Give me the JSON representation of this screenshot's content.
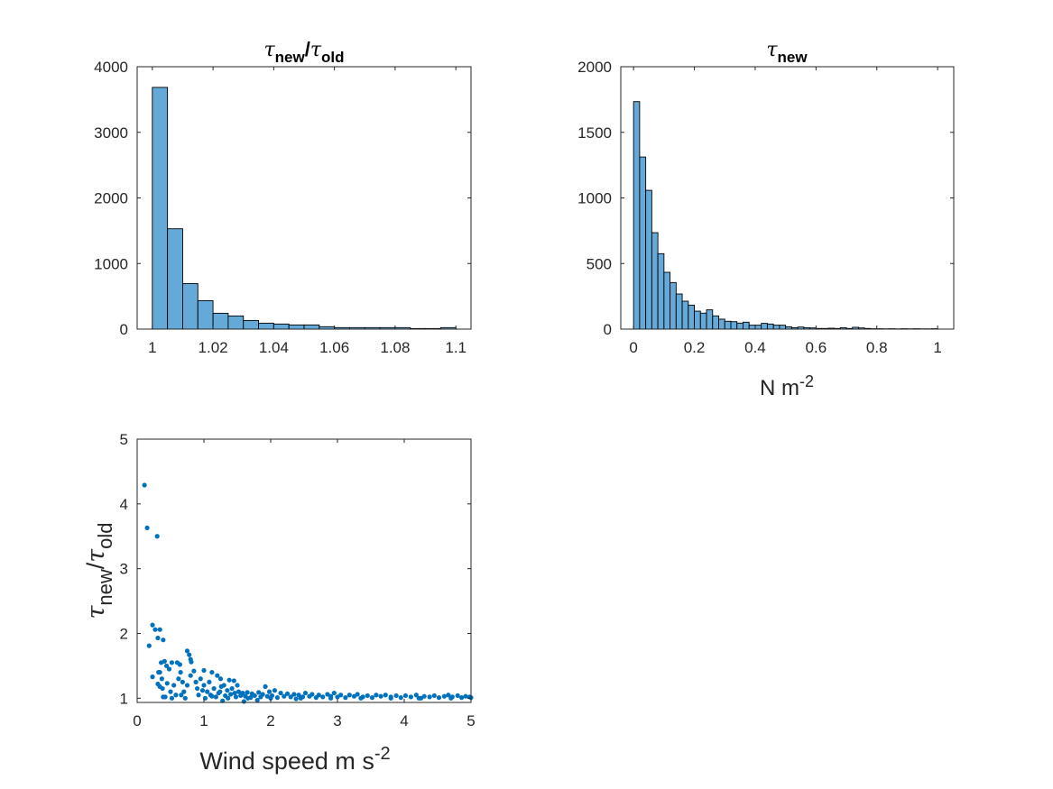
{
  "chart_data": [
    {
      "type": "bar",
      "subtype": "histogram",
      "title": {
        "symbol": "τ",
        "num_sub": "new",
        "slash": "/",
        "den_sub": "old"
      },
      "xlabel": "",
      "ylabel": "",
      "bin_edges_start": 1.0,
      "bin_width": 0.005,
      "values": [
        3685,
        1530,
        694,
        434,
        242,
        201,
        132,
        91,
        78,
        64,
        64,
        37,
        23,
        23,
        23,
        23,
        23,
        9,
        9,
        23
      ],
      "xlim": [
        0.995,
        1.105
      ],
      "ylim": [
        0,
        4000
      ],
      "xticks": [
        1,
        1.02,
        1.04,
        1.06,
        1.08,
        1.1
      ],
      "xtick_labels": [
        "1",
        "1.02",
        "1.04",
        "1.06",
        "1.08",
        "1.1"
      ],
      "yticks": [
        0,
        1000,
        2000,
        3000,
        4000
      ],
      "ytick_labels": [
        "0",
        "1000",
        "2000",
        "3000",
        "4000"
      ],
      "color": "#64A9D8"
    },
    {
      "type": "bar",
      "subtype": "histogram",
      "title": {
        "symbol": "τ",
        "num_sub": "new"
      },
      "xlabel": {
        "text": "N m",
        "sup": "-2"
      },
      "ylabel": "",
      "bin_edges_start": 0.0,
      "bin_width": 0.02,
      "values": [
        1734,
        1312,
        1058,
        735,
        575,
        433,
        355,
        268,
        213,
        183,
        137,
        122,
        147,
        101,
        76,
        60,
        57,
        46,
        53,
        30,
        30,
        44,
        39,
        30,
        30,
        18,
        11,
        16,
        11,
        9,
        5,
        5,
        7,
        5,
        11,
        5,
        14,
        9,
        5,
        3,
        3,
        2,
        3,
        2,
        3,
        2,
        3,
        2,
        2,
        3
      ],
      "xlim": [
        -0.042,
        1.053
      ],
      "ylim": [
        0,
        2000
      ],
      "xticks": [
        0,
        0.2,
        0.4,
        0.6,
        0.8,
        1
      ],
      "xtick_labels": [
        "0",
        "0.2",
        "0.4",
        "0.6",
        "0.8",
        "1"
      ],
      "yticks": [
        0,
        500,
        1000,
        1500,
        2000
      ],
      "ytick_labels": [
        "0",
        "500",
        "1000",
        "1500",
        "2000"
      ],
      "color": "#64A9D8"
    },
    {
      "type": "scatter",
      "title": "",
      "xlabel": {
        "text": "Wind speed m s",
        "sup": "-2"
      },
      "ylabel": {
        "symbol": "τ",
        "num_sub": "new",
        "slash": "/",
        "den_sub": "old"
      },
      "xlim": [
        0,
        5
      ],
      "ylim": [
        0.935,
        5
      ],
      "xticks": [
        0,
        1,
        2,
        3,
        4,
        5
      ],
      "xtick_labels": [
        "0",
        "1",
        "2",
        "3",
        "4",
        "5"
      ],
      "yticks": [
        1,
        2,
        3,
        4,
        5
      ],
      "ytick_labels": [
        "1",
        "2",
        "3",
        "4",
        "5"
      ],
      "color": "#0072BD",
      "points": [
        [
          0.11,
          4.29
        ],
        [
          0.15,
          3.63
        ],
        [
          0.3,
          3.5
        ],
        [
          0.23,
          2.13
        ],
        [
          0.27,
          2.06
        ],
        [
          0.34,
          2.06
        ],
        [
          0.31,
          1.93
        ],
        [
          0.39,
          1.9
        ],
        [
          0.18,
          1.81
        ],
        [
          0.23,
          1.33
        ],
        [
          0.75,
          1.73
        ],
        [
          0.78,
          1.67
        ],
        [
          0.8,
          1.6
        ],
        [
          0.81,
          1.56
        ],
        [
          0.36,
          1.55
        ],
        [
          0.41,
          1.57
        ],
        [
          0.44,
          1.5
        ],
        [
          0.52,
          1.55
        ],
        [
          0.6,
          1.55
        ],
        [
          0.64,
          1.52
        ],
        [
          0.48,
          1.45
        ],
        [
          0.34,
          1.4
        ],
        [
          0.32,
          1.4
        ],
        [
          0.37,
          1.3
        ],
        [
          0.31,
          1.22
        ],
        [
          0.34,
          1.18
        ],
        [
          0.38,
          1.15
        ],
        [
          0.45,
          1.23
        ],
        [
          0.39,
          1.02
        ],
        [
          0.42,
          1.02
        ],
        [
          0.52,
          1.0
        ],
        [
          0.5,
          1.1
        ],
        [
          0.55,
          1.2
        ],
        [
          0.58,
          1.05
        ],
        [
          0.62,
          1.3
        ],
        [
          0.65,
          1.4
        ],
        [
          0.68,
          1.25
        ],
        [
          0.7,
          1.1
        ],
        [
          0.72,
          1.0
        ],
        [
          0.75,
          1.2
        ],
        [
          0.8,
          1.35
        ],
        [
          0.85,
          1.42
        ],
        [
          0.9,
          1.15
        ],
        [
          0.95,
          1.3
        ],
        [
          1.0,
          1.43
        ],
        [
          1.0,
          1.2
        ],
        [
          1.05,
          1.1
        ],
        [
          1.12,
          1.4
        ],
        [
          1.2,
          1.35
        ],
        [
          1.25,
          1.3
        ],
        [
          1.3,
          1.2
        ],
        [
          1.38,
          1.28
        ],
        [
          1.45,
          1.27
        ],
        [
          1.5,
          1.2
        ],
        [
          1.28,
          0.96
        ],
        [
          1.6,
          0.95
        ],
        [
          1.8,
          0.97
        ],
        [
          1.92,
          1.18
        ],
        [
          0.66,
          1.05
        ],
        [
          0.88,
          1.25
        ],
        [
          0.92,
          1.05
        ],
        [
          0.98,
          1.12
        ],
        [
          1.02,
          1.0
        ],
        [
          1.08,
          1.25
        ],
        [
          1.1,
          1.05
        ],
        [
          1.15,
          1.15
        ],
        [
          1.18,
          1.02
        ],
        [
          1.22,
          1.08
        ],
        [
          1.26,
          1.18
        ],
        [
          1.32,
          1.04
        ],
        [
          1.35,
          1.12
        ],
        [
          1.4,
          1.06
        ],
        [
          1.42,
          1.15
        ],
        [
          1.48,
          1.02
        ],
        [
          1.52,
          1.1
        ],
        [
          1.55,
          1.04
        ],
        [
          1.58,
          1.08
        ],
        [
          1.62,
          1.03
        ],
        [
          1.65,
          1.09
        ],
        [
          1.7,
          1.01
        ],
        [
          1.72,
          1.07
        ],
        [
          1.76,
          1.04
        ],
        [
          1.82,
          1.09
        ],
        [
          1.85,
          1.02
        ],
        [
          1.88,
          1.06
        ],
        [
          1.95,
          1.03
        ],
        [
          1.98,
          1.1
        ],
        [
          2.02,
          1.04
        ],
        [
          2.06,
          1.12
        ],
        [
          2.1,
          1.01
        ],
        [
          2.15,
          1.08
        ],
        [
          2.2,
          1.03
        ],
        [
          2.25,
          1.07
        ],
        [
          2.3,
          1.02
        ],
        [
          2.35,
          1.06
        ],
        [
          2.38,
          0.99
        ],
        [
          2.42,
          1.05
        ],
        [
          2.48,
          1.02
        ],
        [
          2.52,
          1.08
        ],
        [
          2.58,
          1.03
        ],
        [
          2.62,
          1.06
        ],
        [
          2.68,
          1.01
        ],
        [
          2.72,
          1.05
        ],
        [
          2.78,
          1.02
        ],
        [
          2.85,
          1.06
        ],
        [
          2.9,
          1.03
        ],
        [
          2.95,
          1.08
        ],
        [
          3.0,
          1.02
        ],
        [
          3.05,
          1.05
        ],
        [
          3.12,
          1.01
        ],
        [
          3.18,
          1.05
        ],
        [
          3.25,
          1.03
        ],
        [
          3.3,
          1.06
        ],
        [
          3.38,
          1.02
        ],
        [
          3.45,
          1.04
        ],
        [
          3.52,
          1.01
        ],
        [
          3.58,
          1.05
        ],
        [
          3.65,
          1.03
        ],
        [
          3.72,
          1.05
        ],
        [
          3.8,
          1.02
        ],
        [
          3.88,
          1.04
        ],
        [
          3.95,
          1.01
        ],
        [
          4.02,
          1.04
        ],
        [
          4.1,
          1.02
        ],
        [
          4.18,
          1.05
        ],
        [
          4.22,
          1.0
        ],
        [
          4.3,
          1.03
        ],
        [
          4.38,
          1.02
        ],
        [
          4.45,
          1.04
        ],
        [
          4.52,
          1.01
        ],
        [
          4.6,
          1.03
        ],
        [
          4.66,
          1.05
        ],
        [
          4.72,
          1.02
        ],
        [
          4.8,
          1.04
        ],
        [
          4.86,
          1.01
        ],
        [
          4.92,
          1.03
        ],
        [
          4.98,
          1.02
        ],
        [
          1.12,
          1.03
        ],
        [
          1.36,
          1.0
        ],
        [
          1.66,
          1.0
        ],
        [
          2.0,
          1.0
        ],
        [
          2.45,
          1.0
        ],
        [
          2.9,
          1.0
        ],
        [
          3.35,
          1.0
        ],
        [
          3.8,
          1.0
        ],
        [
          4.25,
          1.0
        ],
        [
          4.7,
          1.0
        ],
        [
          5.0,
          1.01
        ],
        [
          1.24,
          1.1
        ],
        [
          1.46,
          1.08
        ]
      ]
    }
  ]
}
